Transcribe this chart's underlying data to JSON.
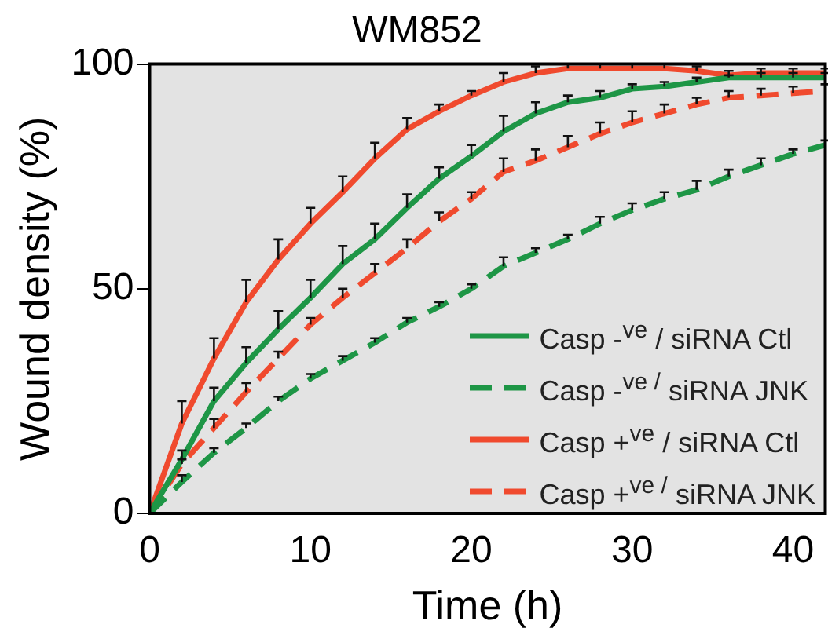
{
  "chart_data": {
    "type": "line",
    "title": "WM852",
    "xlabel": "Time (h)",
    "ylabel": "Wound density (%)",
    "x": [
      0,
      2,
      4,
      6,
      8,
      10,
      12,
      14,
      16,
      18,
      20,
      22,
      24,
      26,
      28,
      30,
      32,
      34,
      36,
      38,
      40,
      42
    ],
    "xlim": [
      0,
      42
    ],
    "xticks": [
      0,
      10,
      20,
      30,
      40
    ],
    "ylim": [
      0,
      100
    ],
    "yticks": [
      0,
      50,
      100
    ],
    "grid": false,
    "legend": "bottom right",
    "marker": "none",
    "series": [
      {
        "name": "Casp -$^{ve}$ / siRNA Ctl",
        "color": "#1e9646",
        "line_style": "solid",
        "values": [
          0,
          12,
          25,
          33.5,
          41,
          48,
          55.5,
          61,
          68,
          74.5,
          79.5,
          85,
          89,
          91.5,
          92.5,
          94.5,
          95,
          96,
          97,
          97,
          97,
          97
        ],
        "errors": [
          null,
          [
            12,
            14
          ],
          [
            25,
            28
          ],
          [
            33.5,
            37
          ],
          [
            41,
            45
          ],
          [
            48,
            52
          ],
          [
            55.5,
            59.5
          ],
          [
            61,
            64.5
          ],
          [
            68,
            71
          ],
          [
            74.5,
            77
          ],
          [
            79.5,
            82
          ],
          [
            85,
            88.5
          ],
          [
            89,
            91.5
          ],
          [
            91.5,
            93
          ],
          [
            92.5,
            94
          ],
          [
            94.5,
            95.5
          ],
          [
            95,
            96
          ],
          [
            96,
            97
          ],
          [
            97,
            97.5
          ],
          [
            97,
            98
          ],
          [
            97,
            98
          ],
          [
            97,
            98
          ]
        ]
      },
      {
        "name": "Casp -$^{ve /}$ siRNA JNK",
        "color": "#1e9646",
        "line_style": "dashed",
        "values": [
          0,
          7,
          13.5,
          19,
          25,
          30,
          34,
          38,
          42.5,
          46,
          50,
          55,
          58,
          61,
          64.5,
          67.5,
          70,
          72,
          75,
          77.5,
          80,
          82
        ],
        "errors": [
          null,
          [
            7,
            8.5
          ],
          [
            13.5,
            14.5
          ],
          [
            19,
            20
          ],
          [
            25,
            26
          ],
          [
            30,
            31
          ],
          [
            34,
            35
          ],
          [
            38,
            39
          ],
          [
            42.5,
            43.5
          ],
          [
            46,
            47
          ],
          [
            50,
            51
          ],
          [
            55,
            57
          ],
          [
            58,
            59
          ],
          [
            61,
            62
          ],
          [
            64.5,
            66
          ],
          [
            67.5,
            69
          ],
          [
            70,
            71.5
          ],
          [
            72,
            74
          ],
          [
            75,
            76.5
          ],
          [
            77.5,
            79
          ],
          [
            80,
            81
          ],
          [
            82,
            83
          ]
        ]
      },
      {
        "name": "Casp +$^{ve}$ / siRNA Ctl",
        "color": "#f04a2e",
        "line_style": "solid",
        "values": [
          0,
          20,
          34.5,
          47,
          56.5,
          64.5,
          71.5,
          79,
          85.5,
          89.5,
          93,
          96,
          98,
          99,
          99,
          99,
          99,
          98.5,
          97.5,
          98,
          98,
          98
        ],
        "errors": [
          null,
          [
            20,
            25
          ],
          [
            34.5,
            39
          ],
          [
            47,
            52
          ],
          [
            56.5,
            61
          ],
          [
            64.5,
            68
          ],
          [
            71.5,
            75
          ],
          [
            79,
            82.5
          ],
          [
            85.5,
            88
          ],
          [
            89.5,
            91
          ],
          [
            93,
            94
          ],
          [
            96,
            98
          ],
          [
            98,
            99.5
          ],
          [
            99,
            100
          ],
          [
            99,
            100
          ],
          [
            99,
            100
          ],
          [
            99,
            100
          ],
          [
            98.5,
            99.5
          ],
          [
            97.5,
            98.5
          ],
          [
            98,
            99
          ],
          [
            98,
            99
          ],
          [
            98,
            99
          ]
        ]
      },
      {
        "name": "Casp +$^{ve /}$ siRNA JNK",
        "color": "#f04a2e",
        "line_style": "dashed",
        "values": [
          0,
          11,
          19,
          27,
          34.5,
          42,
          48,
          53.5,
          59,
          65,
          70,
          76,
          78.5,
          81.5,
          84.5,
          87,
          89,
          91,
          92.5,
          93,
          93.5,
          94
        ],
        "errors": [
          null,
          [
            11,
            12
          ],
          [
            19,
            21
          ],
          [
            27,
            29
          ],
          [
            34.5,
            36
          ],
          [
            42,
            43.5
          ],
          [
            48,
            50
          ],
          [
            53.5,
            55.5
          ],
          [
            59,
            61
          ],
          [
            65,
            67
          ],
          [
            70,
            71.5
          ],
          [
            76,
            79
          ],
          [
            78.5,
            81
          ],
          [
            81.5,
            84
          ],
          [
            84.5,
            87
          ],
          [
            87,
            89.5
          ],
          [
            89,
            91
          ],
          [
            91,
            92.5
          ],
          [
            92.5,
            94
          ],
          [
            93,
            94.5
          ],
          [
            93.5,
            95
          ],
          [
            94,
            95.5
          ]
        ]
      }
    ]
  }
}
